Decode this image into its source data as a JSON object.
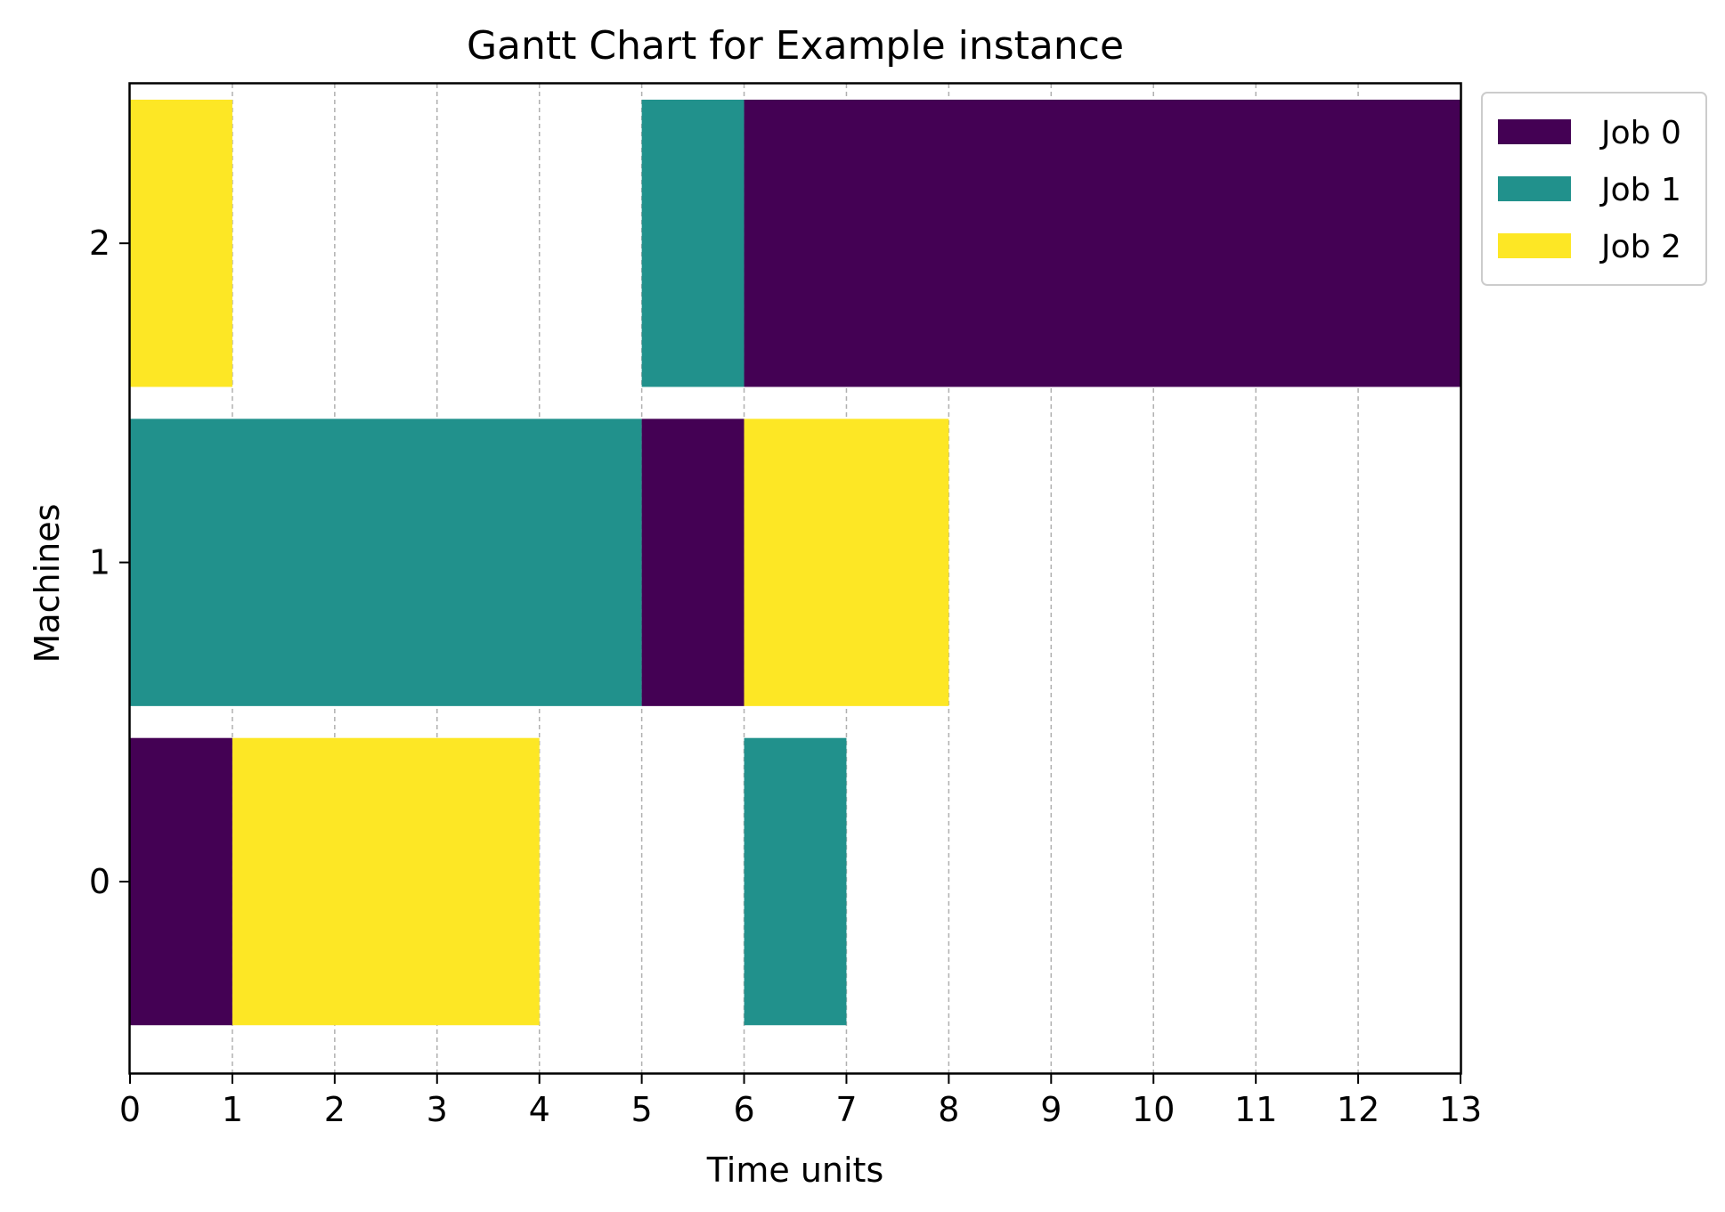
{
  "chart_data": {
    "type": "gantt",
    "title": "Gantt Chart for Example instance",
    "xlabel": "Time units",
    "ylabel": "Machines",
    "xlim": [
      0,
      13
    ],
    "xticks": [
      "0",
      "1",
      "2",
      "3",
      "4",
      "5",
      "6",
      "7",
      "8",
      "9",
      "10",
      "11",
      "12",
      "13"
    ],
    "yticks": [
      "0",
      "1",
      "2"
    ],
    "grid": "vertical dashed",
    "legend_position": "outside top-right",
    "series": [
      {
        "name": "Job 0",
        "color": "#440154"
      },
      {
        "name": "Job 1",
        "color": "#21918c"
      },
      {
        "name": "Job 2",
        "color": "#fde725"
      }
    ],
    "tasks": [
      {
        "machine": 0,
        "job": 0,
        "start": 0,
        "end": 1
      },
      {
        "machine": 0,
        "job": 2,
        "start": 1,
        "end": 4
      },
      {
        "machine": 0,
        "job": 1,
        "start": 6,
        "end": 7
      },
      {
        "machine": 1,
        "job": 1,
        "start": 0,
        "end": 5
      },
      {
        "machine": 1,
        "job": 0,
        "start": 5,
        "end": 6
      },
      {
        "machine": 1,
        "job": 2,
        "start": 6,
        "end": 8
      },
      {
        "machine": 2,
        "job": 2,
        "start": 0,
        "end": 1
      },
      {
        "machine": 2,
        "job": 1,
        "start": 5,
        "end": 6
      },
      {
        "machine": 2,
        "job": 0,
        "start": 6,
        "end": 13
      }
    ]
  }
}
